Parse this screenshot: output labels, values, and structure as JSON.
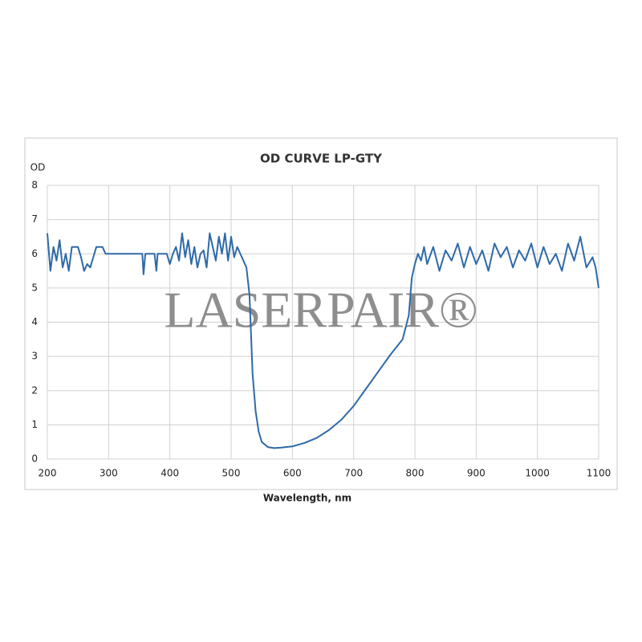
{
  "chart_data": {
    "type": "line",
    "title": "OD CURVE LP-GTY",
    "y_label": "OD",
    "x_label": "Wavelength, nm",
    "watermark": "LASERPAIR®",
    "color": "#2e6aa8",
    "grid": true,
    "xlim": [
      200,
      1100
    ],
    "ylim": [
      0,
      8
    ],
    "xticks": [
      200,
      300,
      400,
      500,
      600,
      700,
      800,
      900,
      1000,
      1100
    ],
    "yticks": [
      0,
      1,
      2,
      3,
      4,
      5,
      6,
      7,
      8
    ],
    "x": [
      200,
      205,
      210,
      215,
      220,
      225,
      230,
      235,
      240,
      245,
      250,
      255,
      260,
      265,
      270,
      275,
      280,
      290,
      295,
      300,
      320,
      340,
      355,
      357,
      360,
      375,
      378,
      380,
      395,
      400,
      405,
      410,
      415,
      420,
      425,
      430,
      435,
      440,
      445,
      450,
      455,
      460,
      465,
      470,
      475,
      480,
      485,
      490,
      495,
      500,
      505,
      510,
      515,
      520,
      525,
      530,
      535,
      540,
      545,
      550,
      560,
      570,
      580,
      600,
      620,
      640,
      660,
      680,
      700,
      720,
      740,
      760,
      780,
      790,
      795,
      800,
      805,
      810,
      815,
      820,
      830,
      840,
      850,
      860,
      870,
      880,
      890,
      900,
      910,
      920,
      930,
      940,
      950,
      960,
      970,
      980,
      990,
      1000,
      1010,
      1020,
      1030,
      1040,
      1050,
      1060,
      1070,
      1080,
      1090,
      1095,
      1100
    ],
    "values": [
      6.6,
      5.5,
      6.2,
      5.8,
      6.4,
      5.6,
      6.0,
      5.5,
      6.2,
      6.2,
      6.2,
      5.9,
      5.5,
      5.7,
      5.6,
      5.9,
      6.2,
      6.2,
      6.0,
      6.0,
      6.0,
      6.0,
      6.0,
      5.4,
      6.0,
      6.0,
      5.5,
      6.0,
      6.0,
      5.7,
      6.0,
      6.2,
      5.8,
      6.6,
      5.9,
      6.4,
      5.7,
      6.2,
      5.6,
      6.0,
      6.1,
      5.6,
      6.6,
      6.2,
      5.8,
      6.5,
      6.0,
      6.6,
      5.8,
      6.5,
      5.9,
      6.2,
      6.0,
      5.8,
      5.6,
      4.8,
      2.5,
      1.4,
      0.8,
      0.5,
      0.35,
      0.32,
      0.33,
      0.37,
      0.47,
      0.62,
      0.85,
      1.15,
      1.55,
      2.05,
      2.55,
      3.05,
      3.5,
      4.2,
      5.3,
      5.7,
      6.0,
      5.8,
      6.2,
      5.7,
      6.2,
      5.5,
      6.1,
      5.8,
      6.3,
      5.6,
      6.2,
      5.7,
      6.1,
      5.5,
      6.3,
      5.9,
      6.2,
      5.6,
      6.1,
      5.8,
      6.3,
      5.6,
      6.2,
      5.7,
      6.0,
      5.5,
      6.3,
      5.8,
      6.5,
      5.6,
      5.9,
      5.6,
      5.0
    ]
  }
}
